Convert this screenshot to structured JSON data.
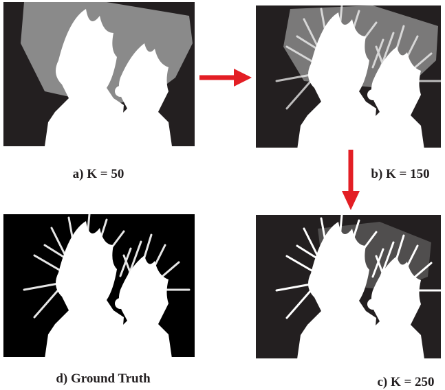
{
  "panels": [
    {
      "caption": "a) K = 50"
    },
    {
      "caption": "b) K = 150"
    },
    {
      "caption": "c) K = 250"
    },
    {
      "caption": "d) Ground Truth"
    }
  ]
}
